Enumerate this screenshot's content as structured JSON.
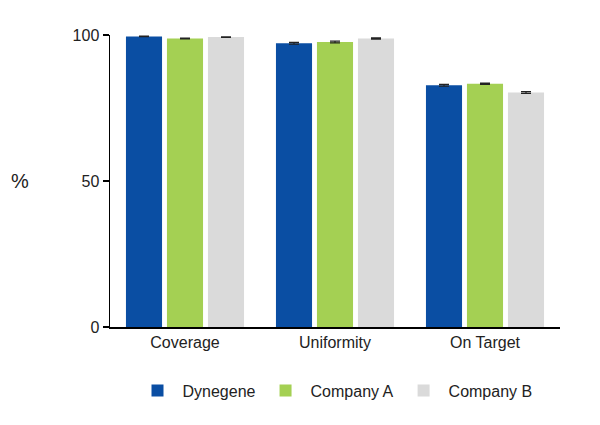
{
  "chart_data": {
    "type": "bar",
    "ylabel": "%",
    "categories": [
      "Coverage",
      "Uniformity",
      "On Target"
    ],
    "series": [
      {
        "name": "Dynegene",
        "color": "#0a4ea3",
        "values": [
          99.5,
          97.2,
          82.8
        ],
        "errors": [
          0.1,
          0.3,
          0.3
        ]
      },
      {
        "name": "Company A",
        "color": "#a4d053",
        "values": [
          98.8,
          97.6,
          83.3
        ],
        "errors": [
          0.1,
          0.3,
          0.2
        ]
      },
      {
        "name": "Company B",
        "color": "#dadada",
        "values": [
          99.3,
          98.8,
          80.3
        ],
        "errors": [
          0.1,
          0.2,
          0.3
        ]
      }
    ],
    "ylim": [
      0,
      100
    ],
    "yticks": [
      0,
      50,
      100
    ],
    "grid": false,
    "legend": "bottom"
  }
}
